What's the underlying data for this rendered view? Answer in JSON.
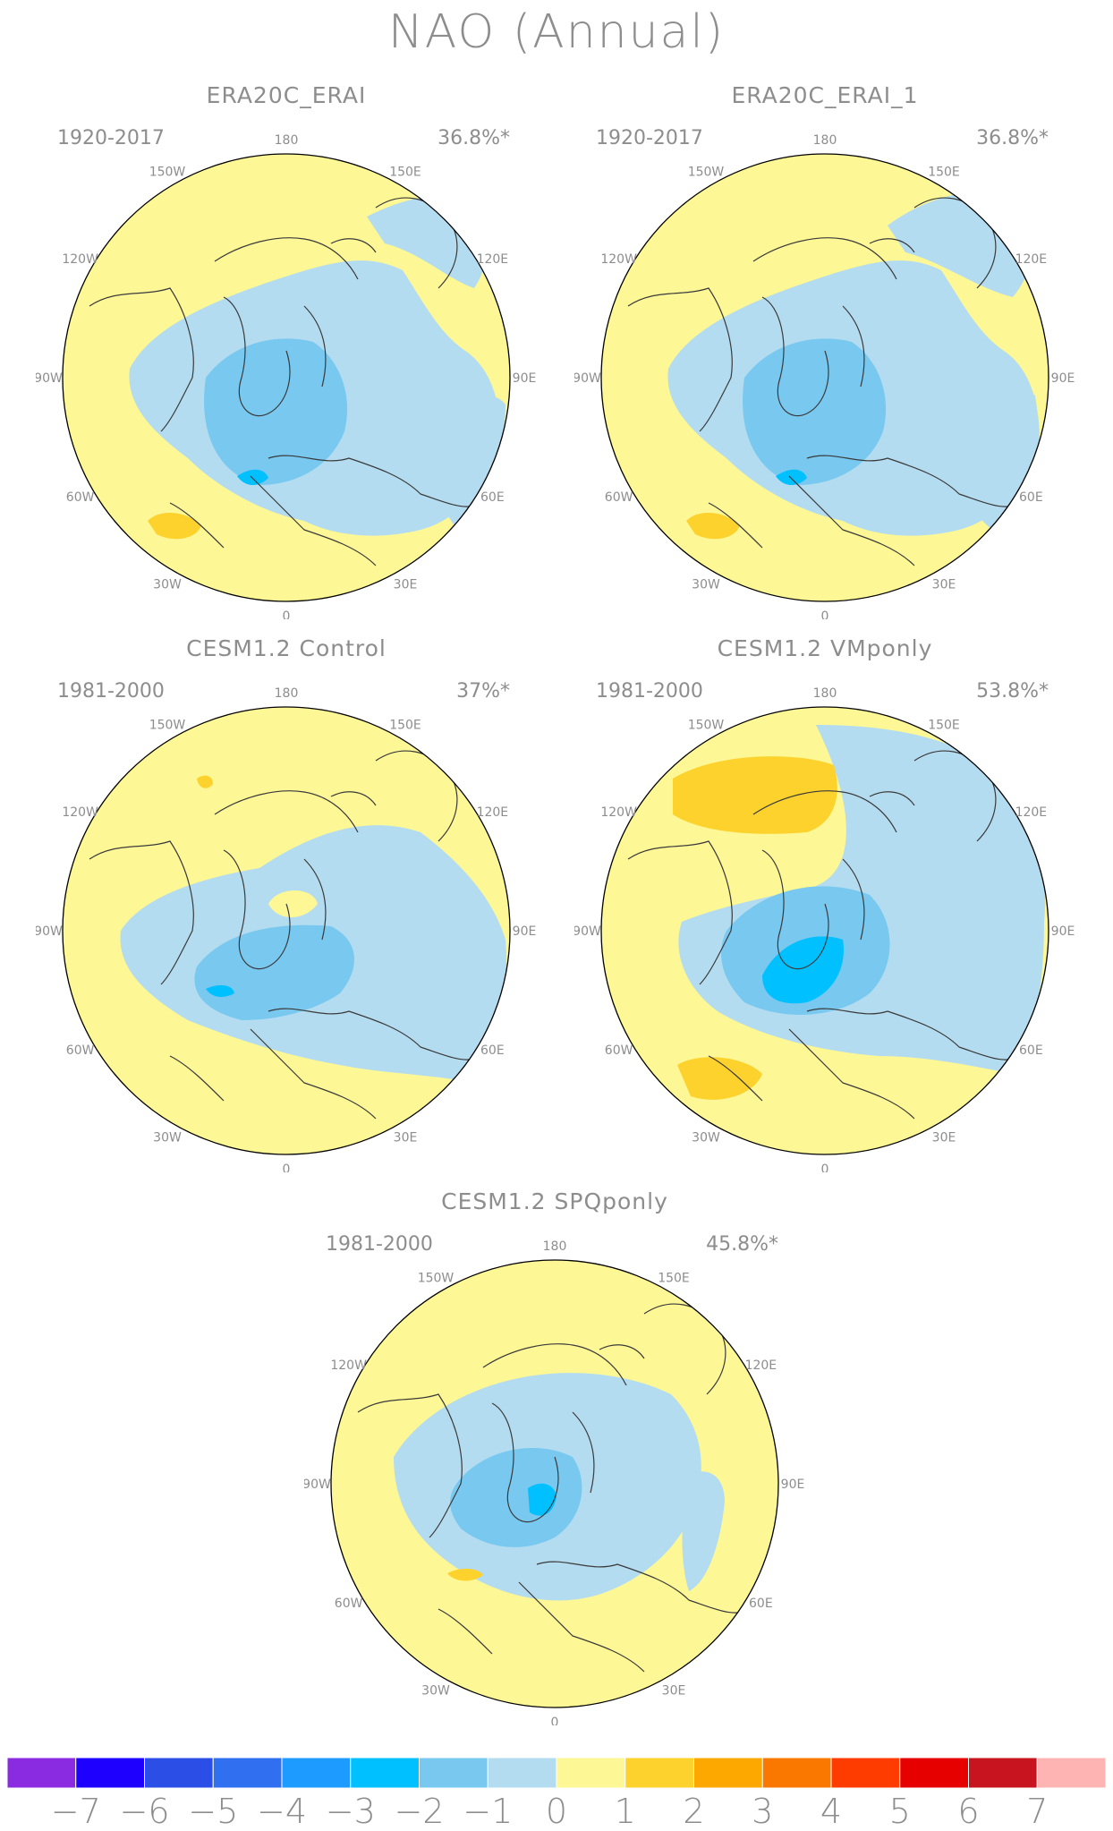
{
  "title": "NAO (Annual)",
  "colors": {
    "bins": [
      "#8a2be2",
      "#1e00ff",
      "#2b4fe6",
      "#2f6ff0",
      "#1e9bff",
      "#00c0ff",
      "#78c8f0",
      "#b4dcf0",
      "#fdf796",
      "#fdd22d",
      "#fca800",
      "#fa7800",
      "#ff3c00",
      "#e60000",
      "#c8141e",
      "#ffb4b4"
    ],
    "land_outline": "#3a3a3a",
    "frame": "#000000"
  },
  "lon_labels": {
    "top": "180",
    "bottom": "0",
    "l150": "150W",
    "r150": "150E",
    "l120": "120W",
    "r120": "120E",
    "l90": "90W",
    "r90": "90E",
    "l60": "60W",
    "r60": "60E",
    "l30": "30W",
    "r30": "30E"
  },
  "panels": [
    {
      "title": "ERA20C_ERAI",
      "period": "1920-2017",
      "variance": "36.8%*"
    },
    {
      "title": "ERA20C_ERAI_1",
      "period": "1920-2017",
      "variance": "36.8%*"
    },
    {
      "title": "CESM1.2 Control",
      "period": "1981-2000",
      "variance": "37%*"
    },
    {
      "title": "CESM1.2 VMponly",
      "period": "1981-2000",
      "variance": "53.8%*"
    },
    {
      "title": "CESM1.2 SPQponly",
      "period": "1981-2000",
      "variance": "45.8%*"
    }
  ],
  "colorbar_labels": [
    "-7",
    "-6",
    "-5",
    "-4",
    "-3",
    "-2",
    "-1",
    "0",
    "1",
    "2",
    "3",
    "4",
    "5",
    "6",
    "7"
  ]
}
